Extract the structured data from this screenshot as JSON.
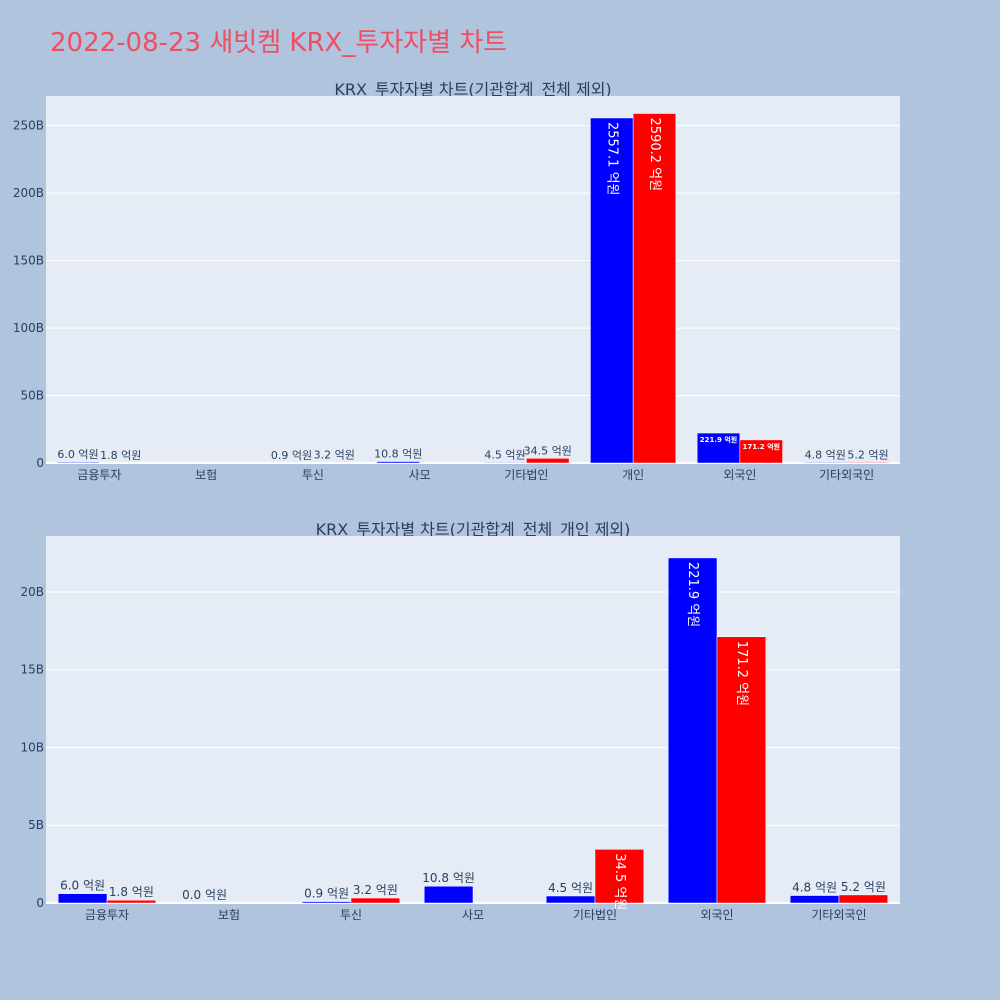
{
  "title": "2022-08-23 새빗켐 KRX_투자자별 차트",
  "colors": {
    "background": "#b0c4de",
    "plot_background": "#e5ecf6",
    "title": "#ef4f63",
    "buy": "#0000ff",
    "sell": "#ff0000",
    "text": "#2a3f5f"
  },
  "chart_data": [
    {
      "type": "bar",
      "title": "KRX_투자자별 차트(기관합계_전체 제외)",
      "categories": [
        "금융투자",
        "보험",
        "투신",
        "사모",
        "기타법인",
        "개인",
        "외국인",
        "기타외국인"
      ],
      "series": [
        {
          "color": "#0000ff",
          "values": [
            0.6,
            null,
            0.09,
            1.08,
            0.45,
            255.71,
            22.19,
            0.48
          ],
          "labels": [
            "6.0 억원",
            "",
            "0.9 억원",
            "10.8 억원",
            "4.5 억원",
            "2557.1 억원",
            "221.9 억원",
            "4.8 억원"
          ]
        },
        {
          "color": "#ff0000",
          "values": [
            0.18,
            null,
            0.32,
            null,
            3.45,
            259.02,
            17.12,
            0.52
          ],
          "labels": [
            "1.8 억원",
            "",
            "3.2 억원",
            "",
            "34.5 억원",
            "2590.2 억원",
            "171.2 억원",
            "5.2 억원"
          ]
        }
      ],
      "ylim": [
        0,
        272
      ],
      "yticks": [
        0,
        50,
        100,
        150,
        200,
        250
      ],
      "ytick_labels": [
        "0",
        "50B",
        "100B",
        "150B",
        "200B",
        "250B"
      ],
      "grid": true
    },
    {
      "type": "bar",
      "title": "KRX_투자자별 차트(기관합계_전체_개인 제외)",
      "categories": [
        "금융투자",
        "보험",
        "투신",
        "사모",
        "기타법인",
        "외국인",
        "기타외국인"
      ],
      "series": [
        {
          "color": "#0000ff",
          "values": [
            0.6,
            0.0,
            0.09,
            1.08,
            0.45,
            22.19,
            0.48
          ],
          "labels": [
            "6.0 억원",
            "0.0 억원",
            "0.9 억원",
            "10.8 억원",
            "4.5 억원",
            "221.9 억원",
            "4.8 억원"
          ]
        },
        {
          "color": "#ff0000",
          "values": [
            0.18,
            null,
            0.32,
            null,
            3.45,
            17.12,
            0.52
          ],
          "labels": [
            "1.8 억원",
            "",
            "3.2 억원",
            "",
            "34.5 억원",
            "171.2 억원",
            "5.2 억원"
          ]
        }
      ],
      "ylim": [
        0,
        23.6
      ],
      "yticks": [
        0,
        5,
        10,
        15,
        20
      ],
      "ytick_labels": [
        "0",
        "5B",
        "10B",
        "15B",
        "20B"
      ],
      "grid": true
    }
  ]
}
